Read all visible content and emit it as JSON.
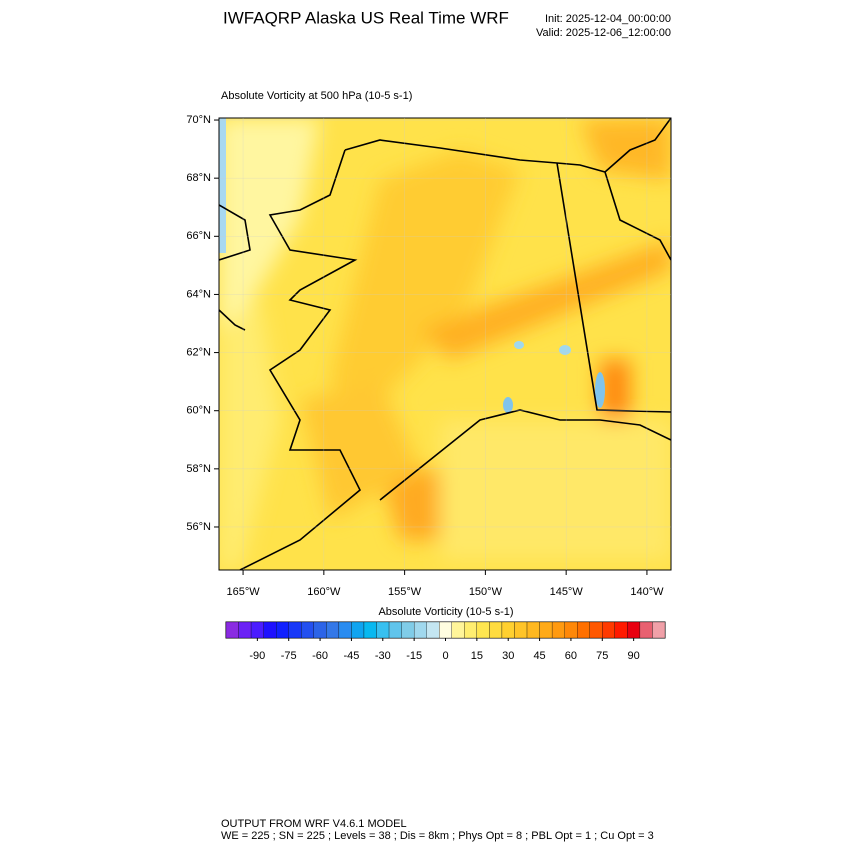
{
  "chart_data": {
    "type": "map",
    "title": "IWFAQRP Alaska US Real Time WRF",
    "init": "Init: 2025-12-04_00:00:00",
    "valid": "Valid: 2025-12-06_12:00:00",
    "subtitle": "Absolute Vorticity at 500 hPa   (10-5 s-1)",
    "xlim": [
      -166.49,
      -138.51
    ],
    "ylim": [
      54.52,
      70.07
    ],
    "xticks": [
      {
        "value": -165,
        "label": "165°W"
      },
      {
        "value": -160,
        "label": "160°W"
      },
      {
        "value": -155,
        "label": "155°W"
      },
      {
        "value": -150,
        "label": "150°W"
      },
      {
        "value": -145,
        "label": "145°W"
      },
      {
        "value": -140,
        "label": "140°W"
      }
    ],
    "yticks": [
      {
        "value": 56,
        "label": "56°N"
      },
      {
        "value": 58,
        "label": "58°N"
      },
      {
        "value": 60,
        "label": "60°N"
      },
      {
        "value": 62,
        "label": "62°N"
      },
      {
        "value": 64,
        "label": "64°N"
      },
      {
        "value": 66,
        "label": "66°N"
      },
      {
        "value": 68,
        "label": "68°N"
      },
      {
        "value": 70,
        "label": "70°N"
      }
    ],
    "colorbar": {
      "title": "Absolute Vorticity  (10-5 s-1)",
      "lim": [
        -105,
        105
      ],
      "ticks": [
        -90,
        -75,
        -60,
        -45,
        -30,
        -15,
        0,
        15,
        30,
        45,
        60,
        75,
        90
      ],
      "colors": [
        "#8a2be2",
        "#6b21f5",
        "#4b1cff",
        "#1e10ff",
        "#1020ff",
        "#1838f8",
        "#2450f0",
        "#2c64e8",
        "#3478e8",
        "#2a8cf0",
        "#10a4f0",
        "#08b8f0",
        "#38c0f0",
        "#60c4ec",
        "#80cce8",
        "#a0d8ee",
        "#c4e6f2",
        "#fffde0",
        "#fff59a",
        "#ffee70",
        "#ffe650",
        "#ffdc40",
        "#ffd030",
        "#ffc428",
        "#ffb820",
        "#ffaa18",
        "#ff9a10",
        "#ff8808",
        "#ff7000",
        "#ff5800",
        "#ff3a00",
        "#ff1a00",
        "#e80010",
        "#e86070",
        "#f0a0a8"
      ]
    },
    "footer": [
      "OUTPUT FROM WRF V4.6.1 MODEL",
      "WE = 225 ; SN = 225 ; Levels = 38 ; Dis = 8km ; Phys Opt = 8 ; PBL Opt = 1 ; Cu Opt = 3"
    ]
  }
}
